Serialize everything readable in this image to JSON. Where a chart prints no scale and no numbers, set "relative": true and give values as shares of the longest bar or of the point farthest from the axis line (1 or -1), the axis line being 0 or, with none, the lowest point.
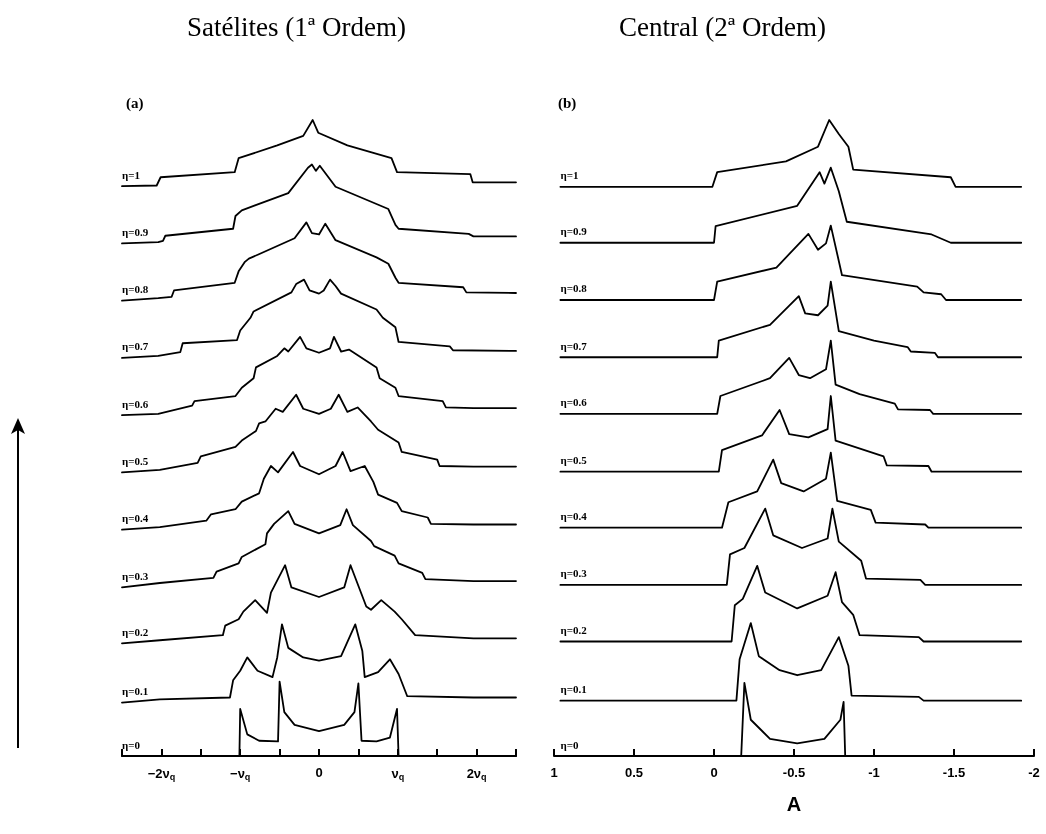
{
  "chart_data": [
    {
      "type": "line",
      "title": "Satélites (1ª Ordem)",
      "annotations": [
        "(a)"
      ],
      "relative": true,
      "xlim": [
        -2.5,
        2.5
      ],
      "xticks": [
        {
          "value": -2.5,
          "label": null
        },
        {
          "value": -2,
          "label": "−2ν$_{q}$"
        },
        {
          "value": -1.5,
          "label": null
        },
        {
          "value": -1,
          "label": "−ν$_{q}$"
        },
        {
          "value": -0.5,
          "label": null
        },
        0,
        {
          "value": 0.5,
          "label": null
        },
        {
          "value": 1,
          "label": "ν$_{q}$"
        },
        {
          "value": 1.5,
          "label": null
        },
        {
          "value": 2,
          "label": "2ν$_{q}$"
        },
        {
          "value": 2.5,
          "label": null
        }
      ],
      "series": [
        {
          "name": "η=0",
          "color": "#000000",
          "x": [
            -2.5,
            -1.01,
            -1.0,
            -0.91,
            -0.76,
            -0.52,
            -0.5,
            -0.44,
            -0.31,
            0,
            0.32,
            0.45,
            0.5,
            0.54,
            0.73,
            0.9,
            0.99,
            1.01,
            2.5
          ],
          "values": [
            0,
            0,
            0.074,
            0.034,
            0.024,
            0.023,
            0.117,
            0.069,
            0.049,
            0.039,
            0.049,
            0.069,
            0.114,
            0.024,
            0.023,
            0.029,
            0.074,
            0,
            0
          ]
        },
        {
          "name": "η=0.1",
          "color": "#000000",
          "x": [
            -2.5,
            -2.02,
            -1.13,
            -1.09,
            -1.0,
            -0.91,
            -0.78,
            -0.59,
            -0.53,
            -0.47,
            -0.39,
            -0.2,
            0,
            0.28,
            0.46,
            0.55,
            0.58,
            0.75,
            0.9,
            1.01,
            1.12,
            1.96,
            2.5
          ],
          "values": [
            0.084,
            0.089,
            0.092,
            0.119,
            0.134,
            0.155,
            0.134,
            0.124,
            0.155,
            0.207,
            0.17,
            0.155,
            0.15,
            0.157,
            0.207,
            0.165,
            0.124,
            0.132,
            0.152,
            0.129,
            0.094,
            0.092,
            0.092
          ]
        },
        {
          "name": "η=0.2",
          "color": "#000000",
          "x": [
            -2.5,
            -2.02,
            -1.22,
            -1.19,
            -1.02,
            -0.96,
            -0.81,
            -0.66,
            -0.61,
            -0.43,
            -0.35,
            0,
            0.32,
            0.4,
            0.6,
            0.66,
            0.79,
            0.96,
            1.05,
            1.22,
            1.96,
            2.5
          ],
          "values": [
            0.177,
            0.182,
            0.19,
            0.205,
            0.215,
            0.227,
            0.245,
            0.225,
            0.257,
            0.3,
            0.265,
            0.25,
            0.265,
            0.3,
            0.235,
            0.23,
            0.245,
            0.227,
            0.215,
            0.19,
            0.185,
            0.185
          ]
        },
        {
          "name": "η=0.3",
          "color": "#000000",
          "x": [
            -2.5,
            -2.02,
            -1.34,
            -1.3,
            -1.02,
            -0.98,
            -0.68,
            -0.66,
            -0.57,
            -0.39,
            -0.31,
            0,
            0.27,
            0.35,
            0.43,
            0.66,
            0.7,
            0.96,
            1.01,
            1.31,
            1.35,
            1.96,
            2.5
          ],
          "values": [
            0.265,
            0.272,
            0.28,
            0.29,
            0.303,
            0.313,
            0.333,
            0.35,
            0.365,
            0.385,
            0.365,
            0.35,
            0.363,
            0.388,
            0.363,
            0.338,
            0.33,
            0.315,
            0.303,
            0.288,
            0.278,
            0.275,
            0.275
          ]
        },
        {
          "name": "η=0.4",
          "color": "#000000",
          "x": [
            -2.5,
            -2.02,
            -1.43,
            -1.37,
            -1.06,
            -0.98,
            -0.76,
            -0.7,
            -0.61,
            -0.52,
            -0.33,
            -0.24,
            0,
            0.21,
            0.3,
            0.4,
            0.58,
            0.69,
            0.75,
            0.99,
            1.05,
            1.38,
            1.42,
            1.96,
            2.5
          ],
          "values": [
            0.356,
            0.36,
            0.37,
            0.38,
            0.388,
            0.4,
            0.413,
            0.436,
            0.456,
            0.446,
            0.478,
            0.456,
            0.443,
            0.456,
            0.478,
            0.448,
            0.456,
            0.431,
            0.411,
            0.398,
            0.385,
            0.375,
            0.365,
            0.364,
            0.364
          ]
        },
        {
          "name": "η=0.5",
          "color": "#000000",
          "x": [
            -2.5,
            -2.02,
            -1.54,
            -1.5,
            -1.06,
            -0.98,
            -0.8,
            -0.76,
            -0.68,
            -0.55,
            -0.46,
            -0.29,
            -0.2,
            0,
            0.15,
            0.25,
            0.36,
            0.49,
            0.66,
            0.75,
            1.01,
            1.05,
            1.5,
            1.53,
            1.96,
            2.5
          ],
          "values": [
            0.446,
            0.45,
            0.461,
            0.471,
            0.486,
            0.496,
            0.511,
            0.523,
            0.526,
            0.546,
            0.541,
            0.568,
            0.546,
            0.538,
            0.546,
            0.568,
            0.541,
            0.548,
            0.526,
            0.513,
            0.493,
            0.478,
            0.466,
            0.456,
            0.455,
            0.455
          ]
        },
        {
          "name": "η=0.6",
          "color": "#000000",
          "x": [
            -2.5,
            -2.04,
            -1.61,
            -1.58,
            -1.06,
            -0.98,
            -0.83,
            -0.8,
            -0.53,
            -0.44,
            -0.39,
            -0.24,
            -0.16,
            0,
            0.14,
            0.19,
            0.28,
            0.38,
            0.73,
            0.77,
            0.97,
            1.01,
            1.57,
            1.61,
            1.96,
            2.5
          ],
          "values": [
            0.536,
            0.538,
            0.551,
            0.558,
            0.566,
            0.579,
            0.594,
            0.611,
            0.629,
            0.641,
            0.636,
            0.659,
            0.641,
            0.634,
            0.641,
            0.659,
            0.636,
            0.639,
            0.611,
            0.594,
            0.579,
            0.566,
            0.558,
            0.548,
            0.547,
            0.547
          ]
        },
        {
          "name": "η=0.7",
          "color": "#000000",
          "x": [
            -2.5,
            -2.04,
            -1.76,
            -1.73,
            -1.04,
            -1.0,
            -0.87,
            -0.83,
            -0.35,
            -0.29,
            -0.19,
            -0.12,
            0,
            0.06,
            0.14,
            0.21,
            0.28,
            0.73,
            0.81,
            0.97,
            1.01,
            1.66,
            1.7,
            2.5
          ],
          "values": [
            0.626,
            0.629,
            0.635,
            0.649,
            0.654,
            0.669,
            0.689,
            0.699,
            0.729,
            0.742,
            0.749,
            0.732,
            0.727,
            0.732,
            0.749,
            0.739,
            0.727,
            0.702,
            0.689,
            0.674,
            0.651,
            0.644,
            0.638,
            0.637
          ]
        },
        {
          "name": "η=0.8",
          "color": "#000000",
          "x": [
            -2.5,
            -2.04,
            -1.87,
            -1.84,
            -1.07,
            -1.02,
            -0.94,
            -0.89,
            -0.31,
            -0.16,
            -0.09,
            0,
            0.08,
            0.21,
            0.73,
            0.88,
            0.97,
            1.01,
            1.83,
            1.87,
            2.5
          ],
          "values": [
            0.716,
            0.72,
            0.722,
            0.732,
            0.744,
            0.762,
            0.777,
            0.782,
            0.814,
            0.839,
            0.822,
            0.82,
            0.837,
            0.811,
            0.784,
            0.774,
            0.752,
            0.744,
            0.737,
            0.729,
            0.728
          ]
        },
        {
          "name": "η=0.9",
          "color": "#000000",
          "x": [
            -2.5,
            -2.04,
            -1.98,
            -1.95,
            -1.09,
            -1.06,
            -0.98,
            -0.39,
            -0.14,
            -0.09,
            -0.04,
            0.01,
            0.21,
            0.88,
            0.97,
            1.01,
            1.9,
            1.96,
            2.5
          ],
          "values": [
            0.806,
            0.808,
            0.81,
            0.818,
            0.829,
            0.849,
            0.858,
            0.885,
            0.925,
            0.93,
            0.92,
            0.928,
            0.895,
            0.86,
            0.835,
            0.829,
            0.821,
            0.817,
            0.817
          ]
        },
        {
          "name": "η=1",
          "color": "#000000",
          "x": [
            -2.5,
            -2.06,
            -2.01,
            -1.07,
            -1.02,
            -0.53,
            -0.2,
            -0.08,
            -0.01,
            0.36,
            0.92,
            0.99,
            1.92,
            1.95,
            2.5
          ],
          "values": [
            0.896,
            0.897,
            0.91,
            0.918,
            0.94,
            0.96,
            0.975,
            1,
            0.98,
            0.96,
            0.94,
            0.918,
            0.915,
            0.902,
            0.902
          ]
        }
      ]
    },
    {
      "type": "line",
      "title": "Central (2ª Ordem)",
      "xlabel": "A",
      "annotations": [
        "(b)"
      ],
      "relative": true,
      "xlim": [
        1,
        -2
      ],
      "xticks": [
        1,
        0.5,
        0,
        -0.5,
        -1,
        -1.5,
        -2
      ],
      "series": [
        {
          "name": "η=0",
          "color": "#000000",
          "x": [
            0.96,
            -0.17,
            -0.19,
            -0.23,
            -0.35,
            -0.52,
            -0.69,
            -0.79,
            -0.81,
            -0.82,
            -1.92
          ],
          "values": [
            0,
            0,
            0.115,
            0.057,
            0.027,
            0.02,
            0.027,
            0.057,
            0.085,
            0,
            0
          ]
        },
        {
          "name": "η=0.1",
          "color": "#000000",
          "x": [
            0.96,
            -0.14,
            -0.16,
            -0.23,
            -0.28,
            -0.41,
            -0.52,
            -0.67,
            -0.78,
            -0.84,
            -0.86,
            -1.28,
            -1.31,
            -1.92
          ],
          "values": [
            0.087,
            0.087,
            0.152,
            0.209,
            0.157,
            0.135,
            0.127,
            0.135,
            0.187,
            0.142,
            0.095,
            0.093,
            0.087,
            0.087
          ]
        },
        {
          "name": "η=0.2",
          "color": "#000000",
          "x": [
            0.96,
            -0.11,
            -0.13,
            -0.18,
            -0.27,
            -0.32,
            -0.52,
            -0.71,
            -0.76,
            -0.8,
            -0.87,
            -0.91,
            -1.28,
            -1.31,
            -1.92
          ],
          "values": [
            0.18,
            0.18,
            0.237,
            0.247,
            0.299,
            0.257,
            0.232,
            0.252,
            0.289,
            0.242,
            0.222,
            0.19,
            0.187,
            0.18,
            0.18
          ]
        },
        {
          "name": "η=0.3",
          "color": "#000000",
          "x": [
            0.96,
            -0.08,
            -0.1,
            -0.19,
            -0.32,
            -0.37,
            -0.55,
            -0.71,
            -0.74,
            -0.78,
            -0.92,
            -0.95,
            -1.29,
            -1.32,
            -1.92
          ],
          "values": [
            0.269,
            0.269,
            0.317,
            0.327,
            0.389,
            0.347,
            0.327,
            0.342,
            0.389,
            0.337,
            0.307,
            0.279,
            0.277,
            0.269,
            0.269
          ]
        },
        {
          "name": "η=0.4",
          "color": "#000000",
          "x": [
            0.96,
            -0.05,
            -0.09,
            -0.27,
            -0.37,
            -0.42,
            -0.56,
            -0.7,
            -0.73,
            -0.77,
            -0.98,
            -1.01,
            -1.32,
            -1.34,
            -1.92
          ],
          "values": [
            0.359,
            0.359,
            0.399,
            0.416,
            0.466,
            0.429,
            0.416,
            0.436,
            0.477,
            0.401,
            0.387,
            0.367,
            0.364,
            0.359,
            0.359
          ]
        },
        {
          "name": "η=0.5",
          "color": "#000000",
          "x": [
            0.96,
            -0.03,
            -0.05,
            -0.3,
            -0.41,
            -0.47,
            -0.59,
            -0.71,
            -0.73,
            -0.76,
            -1.06,
            -1.08,
            -1.34,
            -1.36,
            -1.92
          ],
          "values": [
            0.447,
            0.447,
            0.481,
            0.504,
            0.544,
            0.506,
            0.501,
            0.514,
            0.566,
            0.496,
            0.471,
            0.457,
            0.456,
            0.447,
            0.447
          ]
        },
        {
          "name": "η=0.6",
          "color": "#000000",
          "x": [
            0.96,
            -0.02,
            -0.04,
            -0.35,
            -0.47,
            -0.53,
            -0.6,
            -0.7,
            -0.73,
            -0.76,
            -0.91,
            -1.13,
            -1.15,
            -1.35,
            -1.37,
            -1.92
          ],
          "values": [
            0.538,
            0.538,
            0.566,
            0.594,
            0.626,
            0.599,
            0.594,
            0.608,
            0.653,
            0.584,
            0.569,
            0.554,
            0.545,
            0.544,
            0.538,
            0.538
          ]
        },
        {
          "name": "η=0.7",
          "color": "#000000",
          "x": [
            0.96,
            -0.02,
            -0.03,
            -0.35,
            -0.53,
            -0.57,
            -0.65,
            -0.71,
            -0.73,
            -0.78,
            -1.0,
            -1.21,
            -1.23,
            -1.38,
            -1.4,
            -1.92
          ],
          "values": [
            0.627,
            0.627,
            0.653,
            0.678,
            0.723,
            0.696,
            0.693,
            0.708,
            0.746,
            0.668,
            0.653,
            0.643,
            0.636,
            0.634,
            0.627,
            0.627
          ]
        },
        {
          "name": "η=0.8",
          "color": "#000000",
          "x": [
            0.96,
            0,
            -0.02,
            -0.39,
            -0.59,
            -0.65,
            -0.7,
            -0.73,
            -0.8,
            -1.27,
            -1.31,
            -1.42,
            -1.45,
            -1.92
          ],
          "values": [
            0.717,
            0.717,
            0.746,
            0.768,
            0.821,
            0.796,
            0.806,
            0.834,
            0.756,
            0.738,
            0.729,
            0.726,
            0.717,
            0.717
          ]
        },
        {
          "name": "η=0.9",
          "color": "#000000",
          "x": [
            0.96,
            0,
            -0.01,
            -0.52,
            -0.66,
            -0.69,
            -0.73,
            -0.78,
            -0.83,
            -1.36,
            -1.48,
            -1.92
          ],
          "values": [
            0.807,
            0.807,
            0.833,
            0.865,
            0.918,
            0.9,
            0.925,
            0.888,
            0.84,
            0.82,
            0.807,
            0.807
          ]
        },
        {
          "name": "η=1",
          "color": "#000000",
          "x": [
            0.96,
            0.01,
            -0.02,
            -0.45,
            -0.65,
            -0.72,
            -0.78,
            -0.84,
            -0.87,
            -1.48,
            -1.51,
            -1.92
          ],
          "values": [
            0.895,
            0.895,
            0.918,
            0.935,
            0.958,
            1,
            0.978,
            0.958,
            0.922,
            0.91,
            0.895,
            0.895
          ]
        }
      ]
    }
  ]
}
